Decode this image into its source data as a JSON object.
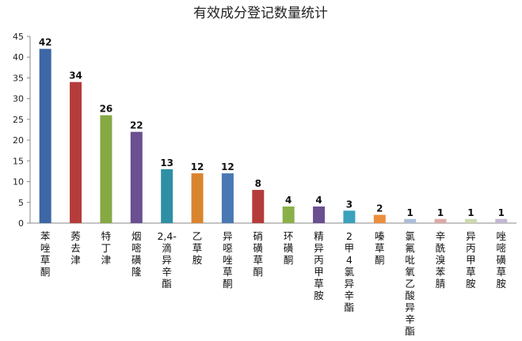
{
  "chart_data": {
    "type": "bar",
    "title": "有效成分登记数量统计",
    "xlabel": "",
    "ylabel": "",
    "ylim": [
      0,
      45
    ],
    "yticks": [
      0,
      5,
      10,
      15,
      20,
      25,
      30,
      35,
      40,
      45
    ],
    "grid": false,
    "legend": "none",
    "categories": [
      "苯唑草酮",
      "莠去津",
      "特丁津",
      "烟嘧磺隆",
      "2,4-滴异辛酯",
      "乙草胺",
      "异噁唑草酮",
      "硝磺草酮",
      "环磺酮",
      "精异丙甲草胺",
      "2甲4氯异辛酯",
      "嗪草酮",
      "氯氟吡氧乙酸异辛酯",
      "辛酰溴苯腈",
      "异丙甲草胺",
      "唑嘧磺草胺"
    ],
    "values": [
      42,
      34,
      26,
      22,
      13,
      12,
      12,
      8,
      4,
      4,
      3,
      2,
      1,
      1,
      1,
      1
    ],
    "colors": [
      "#3d67a5",
      "#b43c3a",
      "#86a944",
      "#6a4f91",
      "#2f8fa5",
      "#d9852f",
      "#4a78b3",
      "#b43c3a",
      "#8ab04a",
      "#6a4f91",
      "#3aa2bd",
      "#ec8f3d",
      "#aebdd8",
      "#dcaaa8",
      "#ccd9b0",
      "#c3b7d3"
    ]
  }
}
